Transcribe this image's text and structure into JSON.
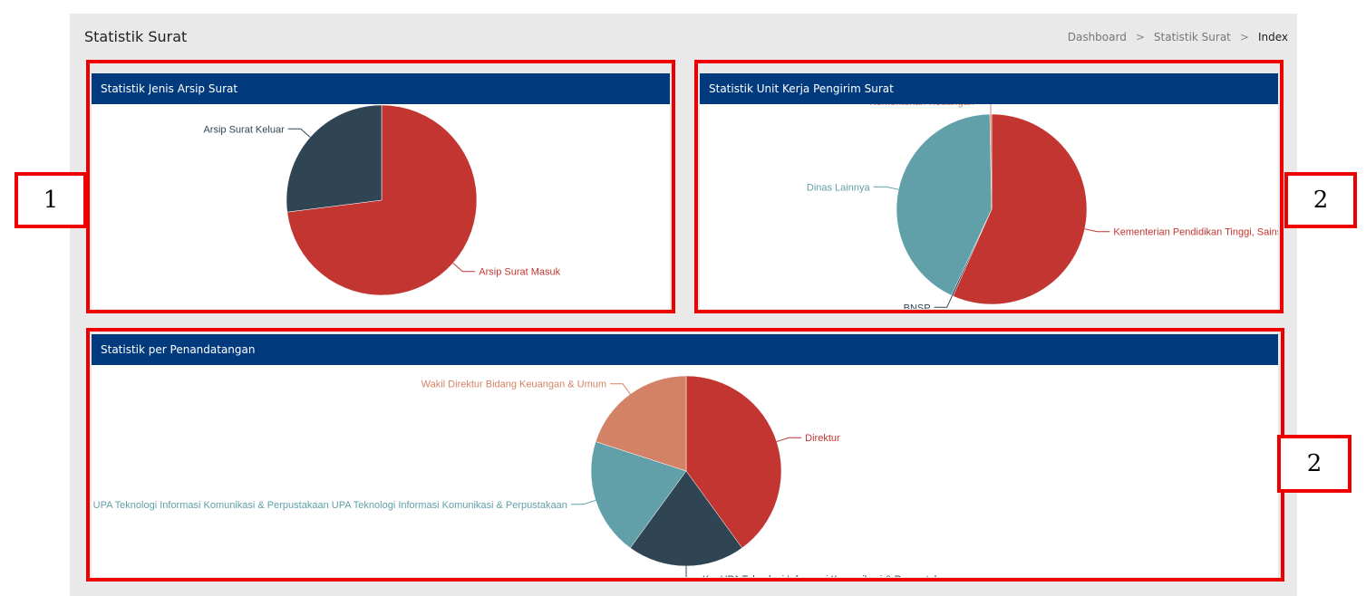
{
  "header": {
    "title": "Statistik Surat",
    "breadcrumb": [
      "Dashboard",
      "Statistik Surat",
      "Index"
    ],
    "separator": ">"
  },
  "annotations": [
    "1",
    "2",
    "2"
  ],
  "colors": {
    "header_bg": "#023a7e",
    "annotation": "#ee0000",
    "red": "#c23531",
    "dark": "#2f4554",
    "teal": "#61a0a8",
    "orange": "#d48265"
  },
  "chart_data": [
    {
      "type": "pie",
      "title": "Statistik Jenis Arsip Surat",
      "slices": [
        {
          "label": "Arsip Surat Masuk",
          "value": 73,
          "color": "#c23531"
        },
        {
          "label": "Arsip Surat Keluar",
          "value": 27,
          "color": "#2f4554"
        }
      ]
    },
    {
      "type": "pie",
      "title": "Statistik Unit Kerja Pengirim Surat",
      "slices": [
        {
          "label": "Kementerian Pendidikan Tinggi, Sains, dan Teknologi",
          "value": 57,
          "color": "#c23531"
        },
        {
          "label": "BNSP",
          "value": 0.3,
          "color": "#2f4554"
        },
        {
          "label": "Dinas Lainnya",
          "value": 43,
          "color": "#61a0a8"
        },
        {
          "label": "Kementerian Keuangan",
          "value": 0.3,
          "color": "#d48265"
        }
      ]
    },
    {
      "type": "pie",
      "title": "Statistik per Penandatangan",
      "slices": [
        {
          "label": "Direktur",
          "value": 40,
          "color": "#c23531"
        },
        {
          "label": "Ka. UPA Teknologi Informasi Komunikasi & Perpustakaan",
          "value": 20,
          "color": "#2f4554"
        },
        {
          "label": "UPA Teknologi Informasi Komunikasi & Perpustakaan UPA Teknologi Informasi Komunikasi & Perpustakaan",
          "value": 20,
          "color": "#61a0a8"
        },
        {
          "label": "Wakil Direktur Bidang Keuangan & Umum",
          "value": 20,
          "color": "#d48265"
        }
      ]
    }
  ]
}
